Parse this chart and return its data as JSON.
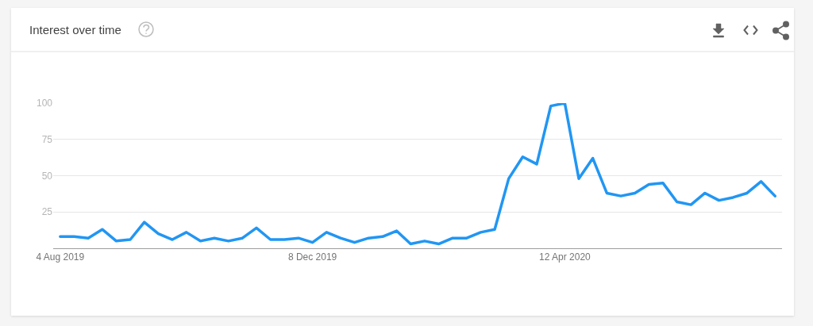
{
  "chart_data": {
    "type": "line",
    "title": "Interest over time",
    "x": [
      "2019-08-04",
      "2019-08-11",
      "2019-08-18",
      "2019-08-25",
      "2019-09-01",
      "2019-09-08",
      "2019-09-15",
      "2019-09-22",
      "2019-09-29",
      "2019-10-06",
      "2019-10-13",
      "2019-10-20",
      "2019-10-27",
      "2019-11-03",
      "2019-11-10",
      "2019-11-17",
      "2019-11-24",
      "2019-12-01",
      "2019-12-08",
      "2019-12-15",
      "2019-12-22",
      "2019-12-29",
      "2020-01-05",
      "2020-01-12",
      "2020-01-19",
      "2020-01-26",
      "2020-02-02",
      "2020-02-09",
      "2020-02-16",
      "2020-02-23",
      "2020-03-01",
      "2020-03-08",
      "2020-03-15",
      "2020-03-22",
      "2020-03-29",
      "2020-04-05",
      "2020-04-12",
      "2020-04-19",
      "2020-04-26",
      "2020-05-03",
      "2020-05-10",
      "2020-05-17",
      "2020-05-24",
      "2020-05-31",
      "2020-06-07",
      "2020-06-14",
      "2020-06-21",
      "2020-06-28",
      "2020-07-05",
      "2020-07-12",
      "2020-07-19",
      "2020-07-26"
    ],
    "series": [
      {
        "color": "#2196f3",
        "values": [
          8,
          8,
          7,
          13,
          5,
          6,
          18,
          10,
          6,
          11,
          5,
          7,
          5,
          7,
          14,
          6,
          6,
          7,
          4,
          11,
          7,
          4,
          7,
          8,
          12,
          3,
          5,
          3,
          7,
          7,
          11,
          13,
          48,
          63,
          58,
          98,
          100,
          48,
          62,
          38,
          36,
          38,
          44,
          45,
          32,
          30,
          38,
          33,
          35,
          38,
          46,
          36
        ]
      }
    ],
    "xlim": [
      "2019-07-31T12:00",
      "2020-07-29T12:00"
    ],
    "xticks": [
      {
        "value": "2019-08-04",
        "label": "4 Aug 2019"
      },
      {
        "value": "2019-12-08",
        "label": "8 Dec 2019"
      },
      {
        "value": "2020-04-12",
        "label": "12 Apr 2020"
      }
    ],
    "ylim": [
      0,
      100
    ],
    "yticks": [
      25,
      50,
      75,
      100
    ],
    "grid": "y"
  }
}
